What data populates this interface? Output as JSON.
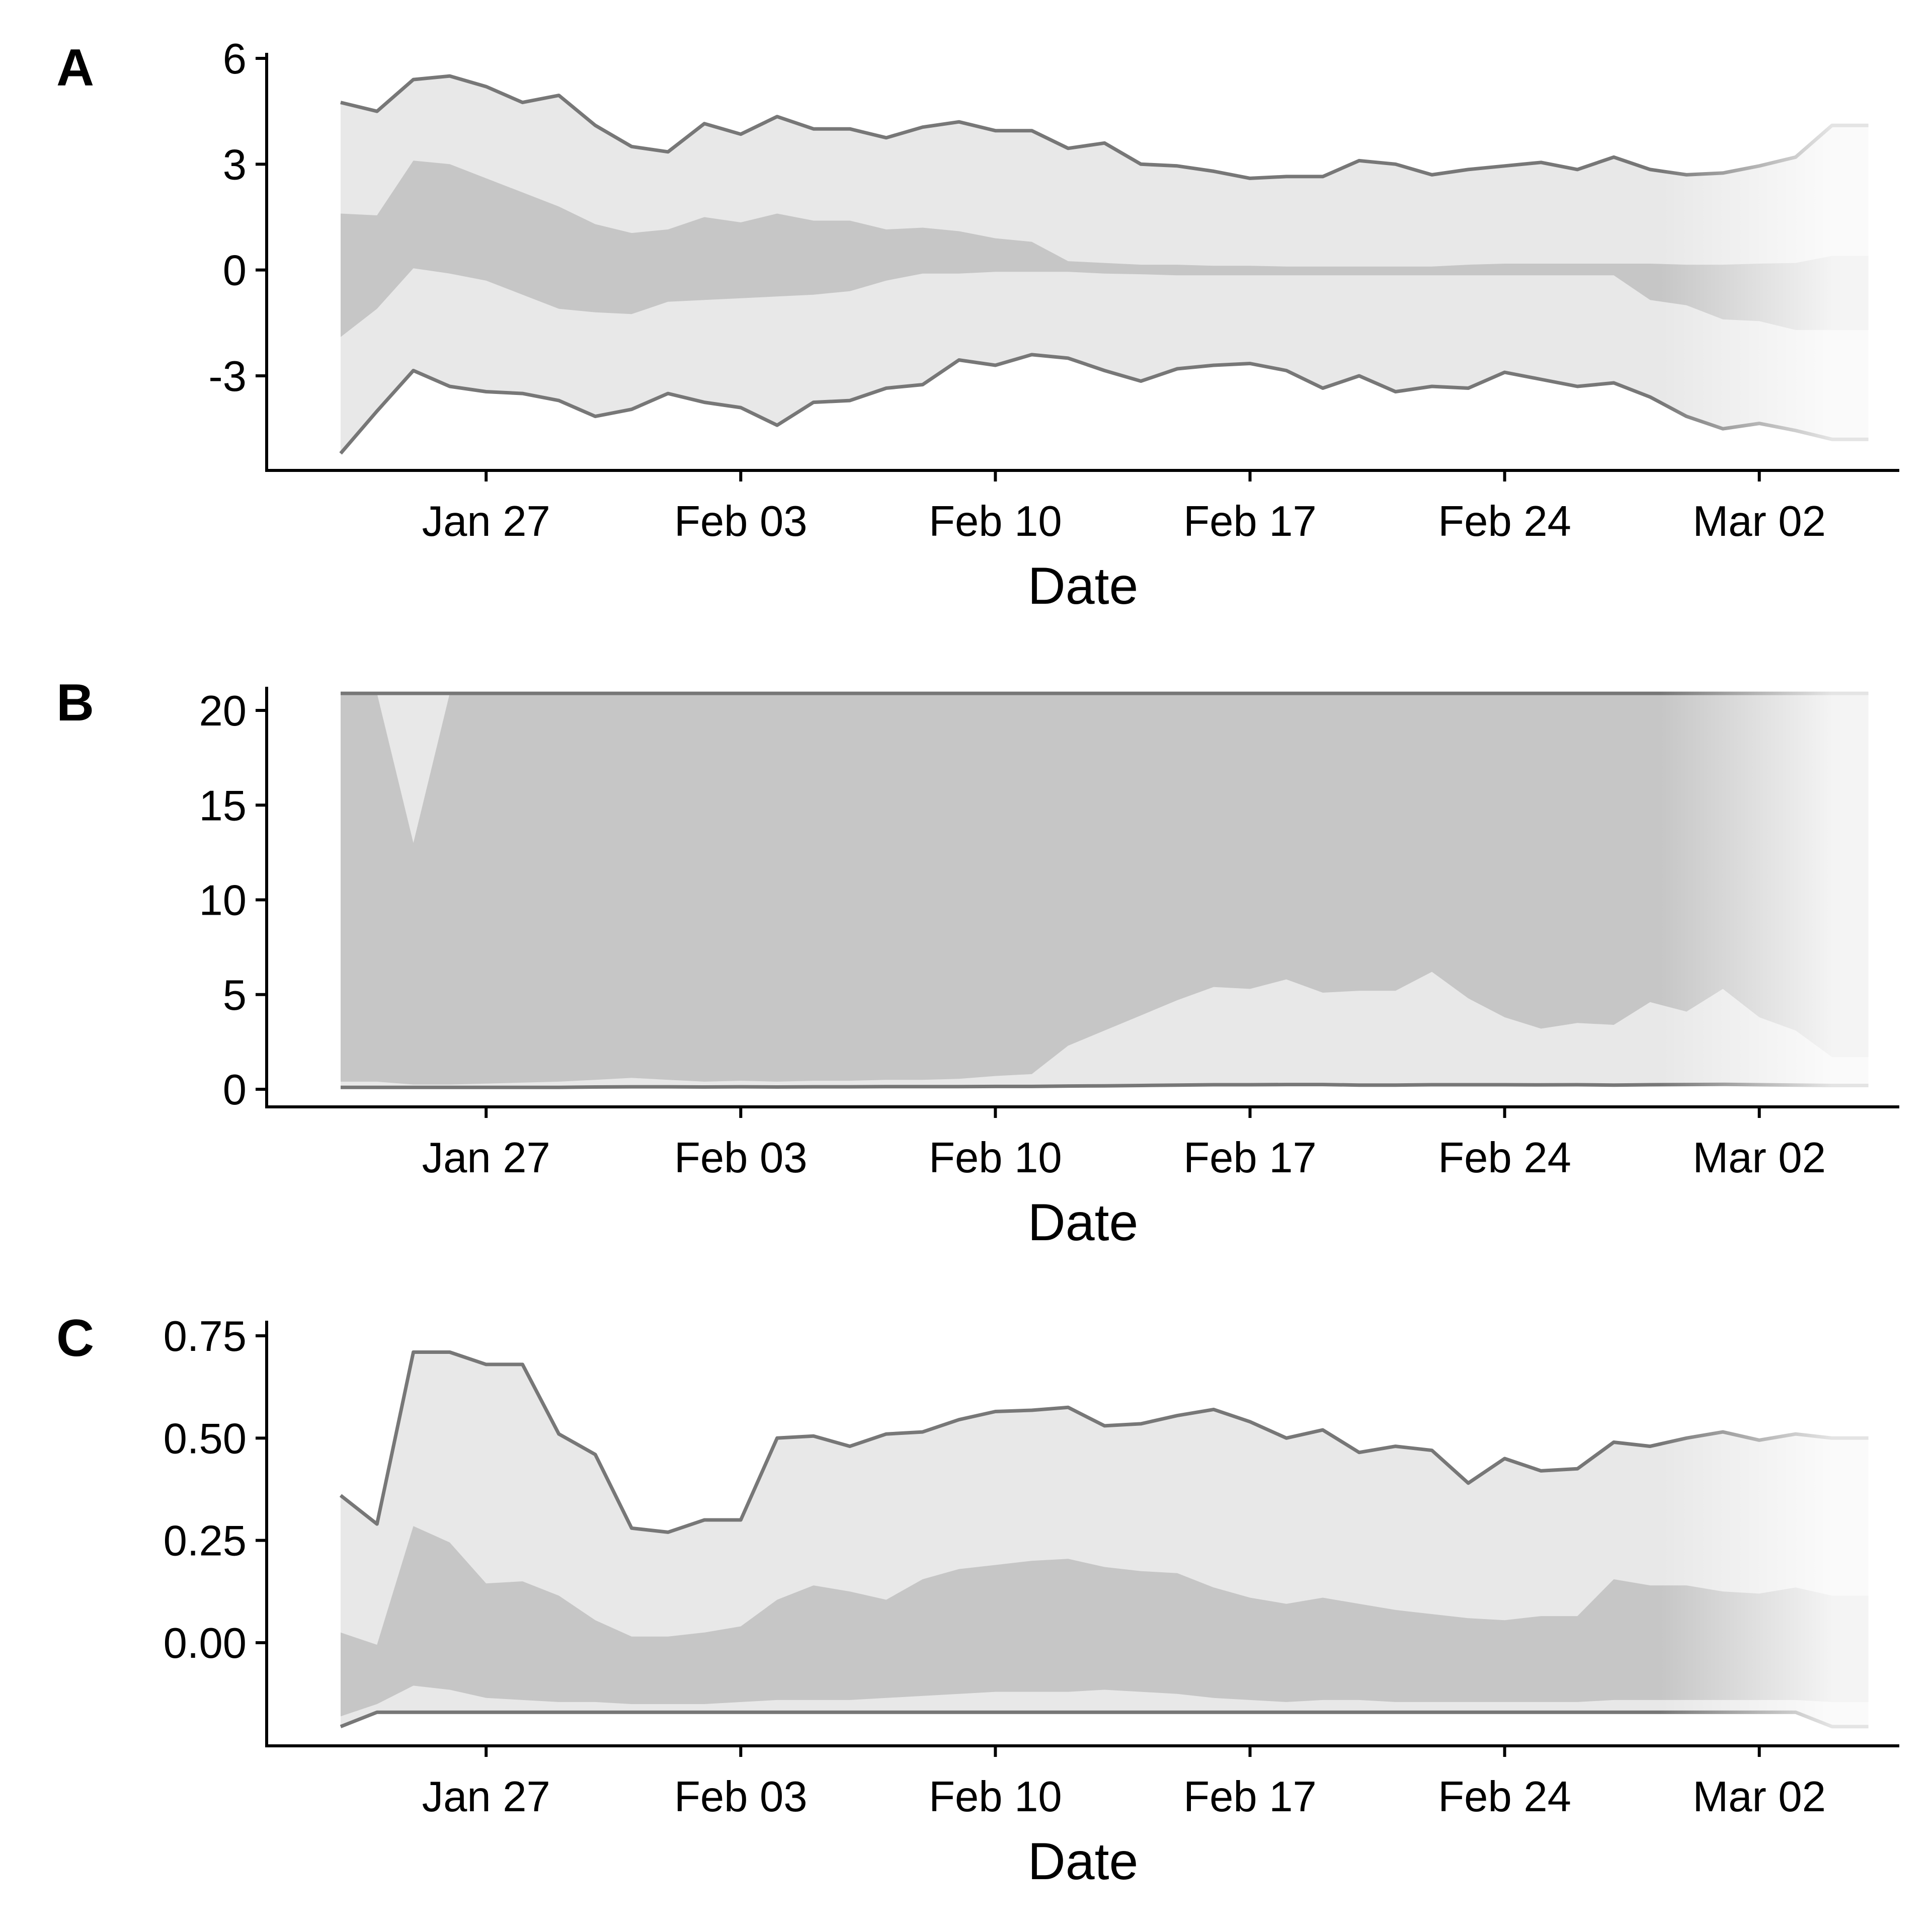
{
  "figure": {
    "colors": {
      "outer_band": "#e8e8e8",
      "inner_band": "#c6c6c6",
      "line": "#777777",
      "axis": "#000000",
      "fade_to": "#ffffff"
    }
  },
  "dates": [
    "2020-01-23",
    "2020-01-24",
    "2020-01-25",
    "2020-01-26",
    "2020-01-27",
    "2020-01-28",
    "2020-01-29",
    "2020-01-30",
    "2020-01-31",
    "2020-02-01",
    "2020-02-02",
    "2020-02-03",
    "2020-02-04",
    "2020-02-05",
    "2020-02-06",
    "2020-02-07",
    "2020-02-08",
    "2020-02-09",
    "2020-02-10",
    "2020-02-11",
    "2020-02-12",
    "2020-02-13",
    "2020-02-14",
    "2020-02-15",
    "2020-02-16",
    "2020-02-17",
    "2020-02-18",
    "2020-02-19",
    "2020-02-20",
    "2020-02-21",
    "2020-02-22",
    "2020-02-23",
    "2020-02-24",
    "2020-02-25",
    "2020-02-26",
    "2020-02-27",
    "2020-02-28",
    "2020-02-29",
    "2020-03-01",
    "2020-03-02",
    "2020-03-03",
    "2020-03-04",
    "2020-03-05"
  ],
  "chart_data": [
    {
      "panel": "A",
      "type": "area",
      "xlabel": "Date",
      "ylabel": "",
      "x_ticks": [
        "Jan 27",
        "Feb 03",
        "Feb 10",
        "Feb 17",
        "Feb 24",
        "Mar 02"
      ],
      "x_tick_dates": [
        "2020-01-27",
        "2020-02-03",
        "2020-02-10",
        "2020-02-17",
        "2020-02-24",
        "2020-03-02"
      ],
      "y_ticks": [
        6,
        3,
        0,
        -3
      ],
      "y_tick_labels": [
        "6",
        "3",
        "0",
        "-3"
      ],
      "ylim": [
        -5.7,
        6.0
      ],
      "grid": false,
      "outer_upper": [
        4.75,
        4.5,
        5.4,
        5.5,
        5.2,
        4.75,
        4.95,
        4.1,
        3.5,
        3.35,
        4.15,
        3.85,
        4.35,
        4.0,
        4.0,
        3.75,
        4.05,
        4.2,
        3.95,
        3.95,
        3.45,
        3.6,
        3.0,
        2.95,
        2.8,
        2.6,
        2.65,
        2.65,
        3.1,
        3.0,
        2.7,
        2.85,
        2.95,
        3.05,
        2.85,
        3.2,
        2.85,
        2.7,
        2.75,
        2.95,
        3.2,
        4.1,
        4.1
      ],
      "inner_upper": [
        1.6,
        1.55,
        3.1,
        3.0,
        2.6,
        2.2,
        1.8,
        1.3,
        1.05,
        1.15,
        1.5,
        1.35,
        1.6,
        1.4,
        1.4,
        1.15,
        1.2,
        1.1,
        0.9,
        0.8,
        0.25,
        0.2,
        0.15,
        0.15,
        0.12,
        0.12,
        0.1,
        0.1,
        0.1,
        0.1,
        0.1,
        0.15,
        0.18,
        0.18,
        0.18,
        0.18,
        0.18,
        0.15,
        0.15,
        0.18,
        0.2,
        0.4,
        0.4
      ],
      "inner_lower": [
        -1.9,
        -1.1,
        0.05,
        -0.1,
        -0.3,
        -0.7,
        -1.1,
        -1.2,
        -1.25,
        -0.9,
        -0.85,
        -0.8,
        -0.75,
        -0.7,
        -0.6,
        -0.3,
        -0.1,
        -0.1,
        -0.05,
        -0.05,
        -0.05,
        -0.1,
        -0.12,
        -0.15,
        -0.15,
        -0.15,
        -0.15,
        -0.15,
        -0.15,
        -0.15,
        -0.15,
        -0.15,
        -0.15,
        -0.15,
        -0.15,
        -0.15,
        -0.85,
        -1.0,
        -1.4,
        -1.45,
        -1.7,
        -1.7,
        -1.7
      ],
      "outer_lower": [
        -5.2,
        -4.0,
        -2.85,
        -3.3,
        -3.45,
        -3.5,
        -3.7,
        -4.15,
        -3.95,
        -3.5,
        -3.75,
        -3.9,
        -4.4,
        -3.75,
        -3.7,
        -3.35,
        -3.25,
        -2.55,
        -2.7,
        -2.4,
        -2.5,
        -2.85,
        -3.15,
        -2.8,
        -2.7,
        -2.65,
        -2.85,
        -3.35,
        -3.0,
        -3.45,
        -3.3,
        -3.35,
        -2.9,
        -3.1,
        -3.3,
        -3.2,
        -3.6,
        -4.15,
        -4.5,
        -4.35,
        -4.55,
        -4.8,
        -4.8
      ]
    },
    {
      "panel": "B",
      "type": "area",
      "xlabel": "Date",
      "ylabel": "",
      "x_ticks": [
        "Jan 27",
        "Feb 03",
        "Feb 10",
        "Feb 17",
        "Feb 24",
        "Mar 02"
      ],
      "x_tick_dates": [
        "2020-01-27",
        "2020-02-03",
        "2020-02-10",
        "2020-02-17",
        "2020-02-24",
        "2020-03-02"
      ],
      "y_ticks": [
        20,
        15,
        10,
        5,
        0
      ],
      "y_tick_labels": [
        "20",
        "15",
        "10",
        "5",
        "0"
      ],
      "ylim": [
        -0.9,
        21.0
      ],
      "grid": false,
      "outer_upper": [
        20.9,
        20.9,
        20.9,
        20.9,
        20.9,
        20.9,
        20.9,
        20.9,
        20.9,
        20.9,
        20.9,
        20.9,
        20.9,
        20.9,
        20.9,
        20.9,
        20.9,
        20.9,
        20.9,
        20.9,
        20.9,
        20.9,
        20.9,
        20.9,
        20.9,
        20.9,
        20.9,
        20.9,
        20.9,
        20.9,
        20.9,
        20.9,
        20.9,
        20.9,
        20.9,
        20.9,
        20.9,
        20.9,
        20.9,
        20.9,
        20.9,
        20.9,
        20.9
      ],
      "inner_upper": [
        20.9,
        20.9,
        13.0,
        20.9,
        20.9,
        20.9,
        20.9,
        20.9,
        20.9,
        20.9,
        20.9,
        20.9,
        20.9,
        20.9,
        20.9,
        20.9,
        20.9,
        20.9,
        20.9,
        20.9,
        20.9,
        20.9,
        20.9,
        20.9,
        20.9,
        20.9,
        20.9,
        20.9,
        20.9,
        20.9,
        20.9,
        20.9,
        20.9,
        20.9,
        20.9,
        20.9,
        20.9,
        20.9,
        20.9,
        20.9,
        20.9,
        20.9,
        20.9
      ],
      "inner_lower": [
        0.4,
        0.4,
        0.25,
        0.25,
        0.3,
        0.35,
        0.4,
        0.5,
        0.6,
        0.5,
        0.4,
        0.45,
        0.4,
        0.45,
        0.45,
        0.5,
        0.5,
        0.55,
        0.7,
        0.8,
        2.3,
        3.1,
        3.9,
        4.7,
        5.4,
        5.3,
        5.8,
        5.1,
        5.2,
        5.2,
        6.2,
        4.8,
        3.8,
        3.2,
        3.5,
        3.4,
        4.6,
        4.1,
        5.3,
        3.8,
        3.1,
        1.7,
        1.7
      ],
      "outer_lower": [
        0.1,
        0.1,
        0.1,
        0.1,
        0.1,
        0.1,
        0.1,
        0.12,
        0.13,
        0.13,
        0.12,
        0.13,
        0.12,
        0.13,
        0.13,
        0.14,
        0.14,
        0.14,
        0.15,
        0.15,
        0.17,
        0.18,
        0.2,
        0.22,
        0.24,
        0.24,
        0.25,
        0.25,
        0.22,
        0.22,
        0.24,
        0.24,
        0.24,
        0.23,
        0.24,
        0.22,
        0.24,
        0.25,
        0.26,
        0.24,
        0.22,
        0.2,
        0.2
      ]
    },
    {
      "panel": "C",
      "type": "area",
      "xlabel": "Date",
      "ylabel": "",
      "x_ticks": [
        "Jan 27",
        "Feb 03",
        "Feb 10",
        "Feb 17",
        "Feb 24",
        "Mar 02"
      ],
      "x_tick_dates": [
        "2020-01-27",
        "2020-02-03",
        "2020-02-10",
        "2020-02-17",
        "2020-02-24",
        "2020-03-02"
      ],
      "y_ticks": [
        0.75,
        0.5,
        0.25,
        0.0
      ],
      "y_tick_labels": [
        "0.75",
        "0.50",
        "0.25",
        "0.00"
      ],
      "ylim": [
        -0.245,
        0.75
      ],
      "grid": false,
      "outer_upper": [
        0.36,
        0.29,
        0.71,
        0.71,
        0.68,
        0.68,
        0.51,
        0.46,
        0.28,
        0.27,
        0.3,
        0.3,
        0.5,
        0.505,
        0.48,
        0.51,
        0.515,
        0.545,
        0.565,
        0.568,
        0.575,
        0.53,
        0.535,
        0.555,
        0.57,
        0.54,
        0.5,
        0.52,
        0.465,
        0.48,
        0.47,
        0.39,
        0.45,
        0.42,
        0.425,
        0.49,
        0.48,
        0.5,
        0.515,
        0.495,
        0.51,
        0.5,
        0.5
      ],
      "inner_upper": [
        0.025,
        -0.005,
        0.285,
        0.245,
        0.145,
        0.15,
        0.115,
        0.055,
        0.015,
        0.015,
        0.025,
        0.04,
        0.105,
        0.14,
        0.125,
        0.105,
        0.155,
        0.18,
        0.19,
        0.2,
        0.205,
        0.185,
        0.175,
        0.17,
        0.135,
        0.11,
        0.095,
        0.11,
        0.095,
        0.08,
        0.07,
        0.06,
        0.055,
        0.065,
        0.065,
        0.155,
        0.14,
        0.14,
        0.125,
        0.12,
        0.135,
        0.115,
        0.115
      ],
      "inner_lower": [
        -0.18,
        -0.15,
        -0.105,
        -0.115,
        -0.135,
        -0.14,
        -0.145,
        -0.145,
        -0.15,
        -0.15,
        -0.15,
        -0.145,
        -0.14,
        -0.14,
        -0.14,
        -0.135,
        -0.13,
        -0.125,
        -0.12,
        -0.12,
        -0.12,
        -0.115,
        -0.12,
        -0.125,
        -0.135,
        -0.14,
        -0.145,
        -0.14,
        -0.14,
        -0.145,
        -0.145,
        -0.145,
        -0.145,
        -0.145,
        -0.145,
        -0.14,
        -0.14,
        -0.14,
        -0.14,
        -0.14,
        -0.14,
        -0.145,
        -0.145
      ],
      "outer_lower": [
        -0.205,
        -0.17,
        -0.17,
        -0.17,
        -0.17,
        -0.17,
        -0.17,
        -0.17,
        -0.17,
        -0.17,
        -0.17,
        -0.17,
        -0.17,
        -0.17,
        -0.17,
        -0.17,
        -0.17,
        -0.17,
        -0.17,
        -0.17,
        -0.17,
        -0.17,
        -0.17,
        -0.17,
        -0.17,
        -0.17,
        -0.17,
        -0.17,
        -0.17,
        -0.17,
        -0.17,
        -0.17,
        -0.17,
        -0.17,
        -0.17,
        -0.17,
        -0.17,
        -0.17,
        -0.17,
        -0.17,
        -0.17,
        -0.205,
        -0.205
      ]
    }
  ]
}
